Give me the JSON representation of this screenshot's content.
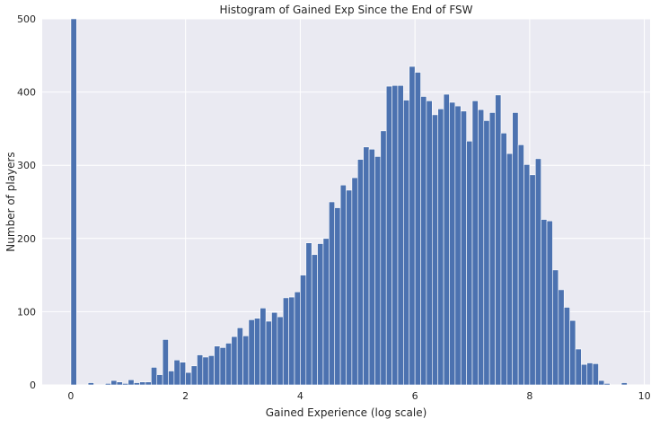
{
  "chart_data": {
    "type": "bar",
    "title": "Histogram of Gained Exp Since the End of FSW",
    "xlabel": "Gained Experience (log scale)",
    "ylabel": "Number of players",
    "xlim": [
      -0.5,
      10.1
    ],
    "ylim": [
      0,
      500
    ],
    "xticks": [
      "0",
      "2",
      "4",
      "6",
      "8",
      "10"
    ],
    "yticks": [
      "0",
      "100",
      "200",
      "300",
      "400",
      "500"
    ],
    "grid": true,
    "bar_color": "#4c72b0",
    "background": "#eaeaf2",
    "bins": [
      [
        0.0,
        0.1,
        500
      ],
      [
        0.1,
        0.2,
        0
      ],
      [
        0.2,
        0.3,
        0
      ],
      [
        0.3,
        0.4,
        3
      ],
      [
        0.4,
        0.5,
        0
      ],
      [
        0.5,
        0.6,
        0
      ],
      [
        0.6,
        0.7,
        2
      ],
      [
        0.7,
        0.8,
        6
      ],
      [
        0.8,
        0.9,
        4
      ],
      [
        0.9,
        1.0,
        2
      ],
      [
        1.0,
        1.1,
        7
      ],
      [
        1.1,
        1.2,
        3
      ],
      [
        1.2,
        1.3,
        4
      ],
      [
        1.3,
        1.4,
        4
      ],
      [
        1.4,
        1.5,
        24
      ],
      [
        1.5,
        1.6,
        14
      ],
      [
        1.6,
        1.7,
        62
      ],
      [
        1.7,
        1.8,
        19
      ],
      [
        1.8,
        1.9,
        34
      ],
      [
        1.9,
        2.0,
        31
      ],
      [
        2.0,
        2.1,
        17
      ],
      [
        2.1,
        2.2,
        26
      ],
      [
        2.2,
        2.3,
        41
      ],
      [
        2.3,
        2.4,
        38
      ],
      [
        2.4,
        2.5,
        40
      ],
      [
        2.5,
        2.6,
        53
      ],
      [
        2.6,
        2.7,
        51
      ],
      [
        2.7,
        2.8,
        57
      ],
      [
        2.8,
        2.9,
        66
      ],
      [
        2.9,
        3.0,
        78
      ],
      [
        3.0,
        3.1,
        67
      ],
      [
        3.1,
        3.2,
        89
      ],
      [
        3.2,
        3.3,
        91
      ],
      [
        3.3,
        3.4,
        105
      ],
      [
        3.4,
        3.5,
        87
      ],
      [
        3.5,
        3.6,
        99
      ],
      [
        3.6,
        3.7,
        93
      ],
      [
        3.7,
        3.8,
        119
      ],
      [
        3.8,
        3.9,
        120
      ],
      [
        3.9,
        4.0,
        127
      ],
      [
        4.0,
        4.1,
        150
      ],
      [
        4.1,
        4.2,
        194
      ],
      [
        4.2,
        4.3,
        178
      ],
      [
        4.3,
        4.4,
        193
      ],
      [
        4.4,
        4.5,
        200
      ],
      [
        4.5,
        4.6,
        250
      ],
      [
        4.6,
        4.7,
        242
      ],
      [
        4.7,
        4.8,
        273
      ],
      [
        4.8,
        4.9,
        266
      ],
      [
        4.9,
        5.0,
        283
      ],
      [
        5.0,
        5.1,
        308
      ],
      [
        5.1,
        5.2,
        325
      ],
      [
        5.2,
        5.3,
        322
      ],
      [
        5.3,
        5.4,
        312
      ],
      [
        5.4,
        5.5,
        347
      ],
      [
        5.5,
        5.6,
        408
      ],
      [
        5.6,
        5.7,
        409
      ],
      [
        5.7,
        5.8,
        409
      ],
      [
        5.8,
        5.9,
        389
      ],
      [
        5.9,
        6.0,
        435
      ],
      [
        6.0,
        6.1,
        427
      ],
      [
        6.1,
        6.2,
        394
      ],
      [
        6.2,
        6.3,
        388
      ],
      [
        6.3,
        6.4,
        369
      ],
      [
        6.4,
        6.5,
        377
      ],
      [
        6.5,
        6.6,
        397
      ],
      [
        6.6,
        6.7,
        386
      ],
      [
        6.7,
        6.8,
        381
      ],
      [
        6.8,
        6.9,
        374
      ],
      [
        6.9,
        7.0,
        333
      ],
      [
        7.0,
        7.1,
        388
      ],
      [
        7.1,
        7.2,
        376
      ],
      [
        7.2,
        7.3,
        361
      ],
      [
        7.3,
        7.4,
        372
      ],
      [
        7.4,
        7.5,
        396
      ],
      [
        7.5,
        7.6,
        344
      ],
      [
        7.6,
        7.7,
        316
      ],
      [
        7.7,
        7.8,
        372
      ],
      [
        7.8,
        7.9,
        328
      ],
      [
        7.9,
        8.0,
        301
      ],
      [
        8.0,
        8.1,
        287
      ],
      [
        8.1,
        8.2,
        309
      ],
      [
        8.2,
        8.3,
        226
      ],
      [
        8.3,
        8.4,
        224
      ],
      [
        8.4,
        8.5,
        157
      ],
      [
        8.5,
        8.6,
        130
      ],
      [
        8.6,
        8.7,
        106
      ],
      [
        8.7,
        8.8,
        88
      ],
      [
        8.8,
        8.9,
        49
      ],
      [
        8.9,
        9.0,
        28
      ],
      [
        9.0,
        9.1,
        30
      ],
      [
        9.1,
        9.2,
        29
      ],
      [
        9.2,
        9.3,
        6
      ],
      [
        9.3,
        9.4,
        2
      ],
      [
        9.4,
        9.5,
        0
      ],
      [
        9.5,
        9.6,
        0
      ],
      [
        9.6,
        9.7,
        3
      ]
    ]
  }
}
